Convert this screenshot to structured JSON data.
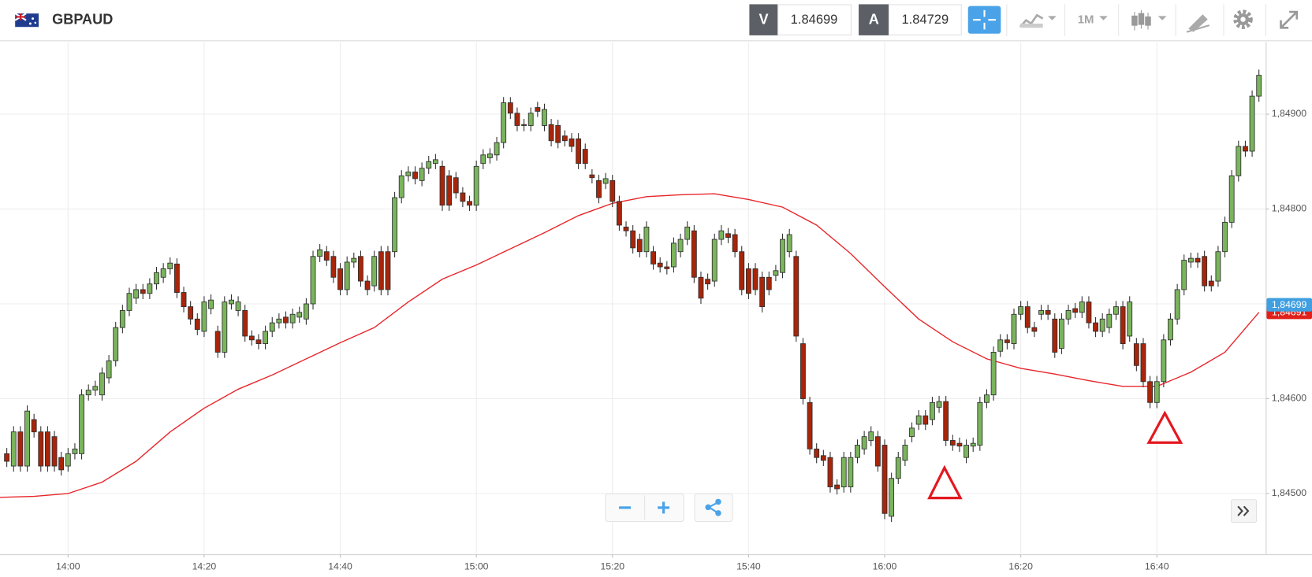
{
  "toolbar": {
    "symbol": "GBPAUD",
    "bid_label": "V",
    "bid": 1.84699,
    "ask_label": "A",
    "ask": 1.84729,
    "timeframe": "1M"
  },
  "chart_data": {
    "type": "candlestick",
    "x": [
      "13:51",
      "13:52",
      "13:53",
      "13:54",
      "13:55",
      "13:56",
      "13:57",
      "13:58",
      "13:59",
      "14:00",
      "14:01",
      "14:02",
      "14:03",
      "14:04",
      "14:05",
      "14:06",
      "14:07",
      "14:08",
      "14:09",
      "14:10",
      "14:11",
      "14:12",
      "14:13",
      "14:14",
      "14:15",
      "14:16",
      "14:17",
      "14:18",
      "14:19",
      "14:20",
      "14:21",
      "14:22",
      "14:23",
      "14:24",
      "14:25",
      "14:26",
      "14:27",
      "14:28",
      "14:29",
      "14:30",
      "14:31",
      "14:32",
      "14:33",
      "14:34",
      "14:35",
      "14:36",
      "14:37",
      "14:38",
      "14:39",
      "14:40",
      "14:41",
      "14:42",
      "14:43",
      "14:44",
      "14:45",
      "14:46",
      "14:47",
      "14:48",
      "14:49",
      "14:50",
      "14:51",
      "14:52",
      "14:53",
      "14:54",
      "14:55",
      "14:56",
      "14:57",
      "14:58",
      "14:59",
      "15:00",
      "15:01",
      "15:02",
      "15:03",
      "15:04",
      "15:05",
      "15:06",
      "15:07",
      "15:08",
      "15:09",
      "15:10",
      "15:11",
      "15:12",
      "15:13",
      "15:14",
      "15:15",
      "15:16",
      "15:17",
      "15:18",
      "15:19",
      "15:20",
      "15:21",
      "15:22",
      "15:23",
      "15:24",
      "15:25",
      "15:26",
      "15:27",
      "15:28",
      "15:29",
      "15:30",
      "15:31",
      "15:32",
      "15:33",
      "15:34",
      "15:35",
      "15:36",
      "15:37",
      "15:38",
      "15:39",
      "15:40",
      "15:41",
      "15:42",
      "15:43",
      "15:44",
      "15:45",
      "15:46",
      "15:47",
      "15:48",
      "15:49",
      "15:50",
      "15:51",
      "15:52",
      "15:53",
      "15:54",
      "15:55",
      "15:56",
      "15:57",
      "15:58",
      "15:59",
      "16:00",
      "16:01",
      "16:02",
      "16:03",
      "16:04",
      "16:05",
      "16:06",
      "16:07",
      "16:08",
      "16:09",
      "16:10",
      "16:11",
      "16:12",
      "16:13",
      "16:14",
      "16:15",
      "16:16",
      "16:17",
      "16:18",
      "16:19",
      "16:20",
      "16:21",
      "16:22",
      "16:23",
      "16:24",
      "16:25",
      "16:26",
      "16:27",
      "16:28",
      "16:29",
      "16:30",
      "16:31",
      "16:32",
      "16:33",
      "16:34",
      "16:35",
      "16:36",
      "16:37",
      "16:38",
      "16:39",
      "16:40",
      "16:41",
      "16:42",
      "16:43",
      "16:44",
      "16:45",
      "16:46",
      "16:47",
      "16:48",
      "16:49",
      "16:50",
      "16:51",
      "16:52",
      "16:53",
      "16:54",
      "16:55"
    ],
    "open": [
      1.84542,
      1.84529,
      1.84565,
      1.84529,
      1.84578,
      1.84565,
      1.84565,
      1.8456,
      1.84538,
      1.84529,
      1.84542,
      1.84542,
      1.84604,
      1.84609,
      1.84604,
      1.84622,
      1.8464,
      1.84675,
      1.84693,
      1.84706,
      1.84715,
      1.84711,
      1.84721,
      1.84728,
      1.84737,
      1.84742,
      1.84712,
      1.84697,
      1.84684,
      1.84671,
      1.84695,
      1.84671,
      1.84649,
      1.847,
      1.84693,
      1.84693,
      1.84666,
      1.84662,
      1.84658,
      1.84671,
      1.8468,
      1.84686,
      1.8468,
      1.84686,
      1.84684,
      1.847,
      1.8475,
      1.84755,
      1.8475,
      1.84737,
      1.84715,
      1.84744,
      1.8475,
      1.84724,
      1.84719,
      1.84755,
      1.84755,
      1.84755,
      1.84812,
      1.84835,
      1.84839,
      1.8483,
      1.84843,
      1.84848,
      1.84845,
      1.84835,
      1.84833,
      1.84817,
      1.84808,
      1.84804,
      1.84848,
      1.84854,
      1.84857,
      1.8487,
      1.84912,
      1.84901,
      1.84889,
      1.84888,
      1.84907,
      1.84888,
      1.84889,
      1.84888,
      1.84877,
      1.84874,
      1.84874,
      1.84863,
      1.84836,
      1.8483,
      1.84827,
      1.8483,
      1.84808,
      1.84781,
      1.84777,
      1.84768,
      1.84755,
      1.84755,
      1.84743,
      1.84739,
      1.84739,
      1.84755,
      1.84768,
      1.84777,
      1.84728,
      1.84726,
      1.84724,
      1.84768,
      1.84774,
      1.84773,
      1.84755,
      1.84737,
      1.84737,
      1.84728,
      1.84728,
      1.8473,
      1.84733,
      1.84755,
      1.8475,
      1.84658,
      1.84596,
      1.84547,
      1.8454,
      1.84538,
      1.84509,
      1.84507,
      1.84507,
      1.84538,
      1.84547,
      1.84556,
      1.8456,
      1.84551,
      1.84476,
      1.84516,
      1.84535,
      1.8456,
      1.84573,
      1.84582,
      1.84578,
      1.84591,
      1.84597,
      1.84556,
      1.84553,
      1.84538,
      1.8455,
      1.84551,
      1.84596,
      1.84604,
      1.8465,
      1.84662,
      1.84658,
      1.84689,
      1.84697,
      1.84675,
      1.84689,
      1.84693,
      1.84684,
      1.84653,
      1.84684,
      1.84695,
      1.84691,
      1.84702,
      1.8468,
      1.84671,
      1.84675,
      1.84689,
      1.84697,
      1.84666,
      1.84658,
      1.84658,
      1.84618,
      1.84596,
      1.84618,
      1.84662,
      1.84684,
      1.84715,
      1.84744,
      1.84748,
      1.8475,
      1.84724,
      1.84724,
      1.84755,
      1.84786,
      1.84835,
      1.84866,
      1.84861,
      1.84919
    ],
    "high": [
      1.84548,
      1.84571,
      1.84571,
      1.84593,
      1.84584,
      1.84571,
      1.84571,
      1.84566,
      1.84544,
      1.84548,
      1.84553,
      1.8461,
      1.84615,
      1.84619,
      1.84633,
      1.84646,
      1.84681,
      1.84699,
      1.84717,
      1.84721,
      1.84721,
      1.84727,
      1.84739,
      1.84743,
      1.84749,
      1.84748,
      1.84718,
      1.84703,
      1.8469,
      1.84708,
      1.8471,
      1.84677,
      1.84708,
      1.8471,
      1.84708,
      1.84699,
      1.84672,
      1.84668,
      1.84677,
      1.84686,
      1.8469,
      1.84692,
      1.84695,
      1.84697,
      1.84706,
      1.84756,
      1.84763,
      1.84761,
      1.84756,
      1.84743,
      1.8475,
      1.84754,
      1.84756,
      1.8473,
      1.84756,
      1.84761,
      1.84761,
      1.84818,
      1.84841,
      1.84845,
      1.84845,
      1.84849,
      1.84856,
      1.84858,
      1.84851,
      1.84841,
      1.84839,
      1.84823,
      1.84814,
      1.84851,
      1.84863,
      1.84864,
      1.84876,
      1.84918,
      1.84918,
      1.84907,
      1.84895,
      1.84907,
      1.84913,
      1.84911,
      1.84895,
      1.84894,
      1.84883,
      1.8488,
      1.8488,
      1.84869,
      1.84842,
      1.84836,
      1.84838,
      1.84836,
      1.84814,
      1.84787,
      1.84783,
      1.84774,
      1.84787,
      1.84761,
      1.84749,
      1.84745,
      1.8477,
      1.84774,
      1.84787,
      1.84783,
      1.84734,
      1.84732,
      1.84774,
      1.84783,
      1.8478,
      1.84779,
      1.84761,
      1.84743,
      1.84743,
      1.84734,
      1.84734,
      1.84741,
      1.84774,
      1.84779,
      1.84756,
      1.84664,
      1.84602,
      1.84553,
      1.84546,
      1.84544,
      1.84515,
      1.84544,
      1.84544,
      1.84557,
      1.84566,
      1.84571,
      1.84566,
      1.84557,
      1.84522,
      1.84544,
      1.84557,
      1.84575,
      1.84588,
      1.84588,
      1.84602,
      1.84603,
      1.84603,
      1.84562,
      1.84559,
      1.84557,
      1.84559,
      1.84602,
      1.8461,
      1.84655,
      1.84668,
      1.84668,
      1.84695,
      1.84703,
      1.84703,
      1.84681,
      1.84699,
      1.84699,
      1.8469,
      1.8469,
      1.84699,
      1.84701,
      1.84708,
      1.84708,
      1.84686,
      1.8469,
      1.84695,
      1.84703,
      1.84703,
      1.84708,
      1.84664,
      1.84664,
      1.84624,
      1.84624,
      1.84668,
      1.8469,
      1.84721,
      1.84752,
      1.84754,
      1.84754,
      1.84756,
      1.8473,
      1.84761,
      1.84792,
      1.84841,
      1.84872,
      1.84872,
      1.84925,
      1.84947
    ],
    "low": [
      1.84528,
      1.84523,
      1.84523,
      1.84523,
      1.84559,
      1.84523,
      1.84523,
      1.84523,
      1.84519,
      1.84523,
      1.84536,
      1.84536,
      1.84598,
      1.84603,
      1.84598,
      1.84616,
      1.84634,
      1.84669,
      1.84687,
      1.847,
      1.84705,
      1.84705,
      1.84715,
      1.84722,
      1.84731,
      1.84706,
      1.84691,
      1.84678,
      1.84667,
      1.84665,
      1.84689,
      1.84643,
      1.84643,
      1.84694,
      1.84687,
      1.8466,
      1.84656,
      1.84652,
      1.84652,
      1.84665,
      1.84674,
      1.84674,
      1.84674,
      1.8468,
      1.84678,
      1.84694,
      1.84744,
      1.8474,
      1.84722,
      1.84709,
      1.84709,
      1.84738,
      1.84718,
      1.84709,
      1.84713,
      1.84709,
      1.84709,
      1.84749,
      1.84806,
      1.84829,
      1.84826,
      1.84824,
      1.84837,
      1.84842,
      1.84798,
      1.84798,
      1.84811,
      1.84802,
      1.84798,
      1.84798,
      1.84842,
      1.84848,
      1.84851,
      1.84864,
      1.84895,
      1.84882,
      1.84882,
      1.84882,
      1.84897,
      1.84882,
      1.84866,
      1.84864,
      1.84866,
      1.8486,
      1.84842,
      1.84842,
      1.84827,
      1.84806,
      1.84821,
      1.84802,
      1.84777,
      1.84771,
      1.84753,
      1.84749,
      1.84749,
      1.84736,
      1.84733,
      1.84731,
      1.84733,
      1.84749,
      1.84762,
      1.84722,
      1.847,
      1.84715,
      1.84718,
      1.84762,
      1.84764,
      1.84749,
      1.84709,
      1.84705,
      1.84709,
      1.84691,
      1.84709,
      1.84724,
      1.84727,
      1.84749,
      1.8466,
      1.84594,
      1.84541,
      1.84532,
      1.84529,
      1.84501,
      1.84499,
      1.84501,
      1.84501,
      1.84532,
      1.84541,
      1.8455,
      1.84523,
      1.84473,
      1.8447,
      1.8451,
      1.84529,
      1.84554,
      1.84567,
      1.84567,
      1.84572,
      1.84585,
      1.8455,
      1.84545,
      1.84544,
      1.84532,
      1.84544,
      1.84545,
      1.8459,
      1.84598,
      1.84644,
      1.84652,
      1.84652,
      1.84683,
      1.84669,
      1.84665,
      1.84683,
      1.84683,
      1.84643,
      1.84647,
      1.84678,
      1.84685,
      1.84685,
      1.84674,
      1.84665,
      1.84665,
      1.84669,
      1.84683,
      1.84652,
      1.8466,
      1.84629,
      1.84612,
      1.8459,
      1.8459,
      1.84612,
      1.84656,
      1.84678,
      1.84709,
      1.84738,
      1.84738,
      1.84713,
      1.84713,
      1.84718,
      1.84749,
      1.8478,
      1.84829,
      1.84855,
      1.84855,
      1.84913
    ],
    "close": [
      1.84534,
      1.84565,
      1.84529,
      1.84587,
      1.84565,
      1.84529,
      1.84529,
      1.84529,
      1.84525,
      1.84542,
      1.84547,
      1.84604,
      1.84609,
      1.84613,
      1.84627,
      1.8464,
      1.84675,
      1.84693,
      1.84711,
      1.84715,
      1.84711,
      1.84721,
      1.84733,
      1.84737,
      1.84743,
      1.84712,
      1.84697,
      1.84684,
      1.84673,
      1.84702,
      1.84704,
      1.84649,
      1.84702,
      1.84704,
      1.84702,
      1.84666,
      1.84662,
      1.84658,
      1.84671,
      1.8468,
      1.84684,
      1.8468,
      1.84689,
      1.84691,
      1.847,
      1.8475,
      1.84757,
      1.84746,
      1.84728,
      1.84715,
      1.84744,
      1.84748,
      1.84724,
      1.84715,
      1.8475,
      1.84715,
      1.84715,
      1.84812,
      1.84835,
      1.84839,
      1.84832,
      1.84843,
      1.8485,
      1.84852,
      1.84804,
      1.84804,
      1.84817,
      1.84808,
      1.84804,
      1.84845,
      1.84857,
      1.84858,
      1.8487,
      1.84912,
      1.84901,
      1.84888,
      1.84888,
      1.84901,
      1.84903,
      1.84905,
      1.84872,
      1.8487,
      1.84872,
      1.84866,
      1.84848,
      1.84848,
      1.84833,
      1.84812,
      1.84832,
      1.84808,
      1.84783,
      1.84777,
      1.84759,
      1.84755,
      1.84781,
      1.84742,
      1.84739,
      1.84737,
      1.84764,
      1.84768,
      1.84781,
      1.84728,
      1.84706,
      1.84721,
      1.84768,
      1.84777,
      1.8477,
      1.84755,
      1.84715,
      1.84711,
      1.84715,
      1.84697,
      1.84715,
      1.84735,
      1.84768,
      1.84773,
      1.84666,
      1.846,
      1.84547,
      1.84538,
      1.84535,
      1.84507,
      1.84505,
      1.84538,
      1.84538,
      1.84551,
      1.8456,
      1.84565,
      1.84529,
      1.84479,
      1.84516,
      1.84538,
      1.84551,
      1.84569,
      1.84582,
      1.84573,
      1.84596,
      1.84597,
      1.84556,
      1.84551,
      1.8455,
      1.84551,
      1.84553,
      1.84596,
      1.84604,
      1.84649,
      1.84662,
      1.84659,
      1.84689,
      1.84697,
      1.84675,
      1.84671,
      1.84693,
      1.84689,
      1.84649,
      1.84684,
      1.84693,
      1.84691,
      1.84702,
      1.8468,
      1.84671,
      1.84684,
      1.84689,
      1.84697,
      1.84658,
      1.84702,
      1.84635,
      1.84618,
      1.84596,
      1.84618,
      1.84662,
      1.84684,
      1.84715,
      1.84746,
      1.84748,
      1.84744,
      1.84719,
      1.84719,
      1.84755,
      1.84786,
      1.84835,
      1.84866,
      1.84861,
      1.84919,
      1.84941
    ],
    "up_color": "#7ab45c",
    "down_color": "#a8250a",
    "wick_color": "#2e2e2e",
    "overlay": {
      "type": "line",
      "color": "#e8262b",
      "x": [
        "13:50",
        "13:55",
        "14:00",
        "14:05",
        "14:10",
        "14:15",
        "14:20",
        "14:25",
        "14:30",
        "14:35",
        "14:40",
        "14:45",
        "14:50",
        "14:55",
        "15:00",
        "15:05",
        "15:10",
        "15:15",
        "15:20",
        "15:25",
        "15:30",
        "15:35",
        "15:40",
        "15:45",
        "15:50",
        "15:55",
        "16:00",
        "16:05",
        "16:10",
        "16:15",
        "16:20",
        "16:25",
        "16:30",
        "16:35",
        "16:40",
        "16:45",
        "16:50",
        "16:55"
      ],
      "values": [
        1.84496,
        1.84497,
        1.845,
        1.84512,
        1.84534,
        1.84565,
        1.8459,
        1.8461,
        1.84625,
        1.84642,
        1.84659,
        1.84675,
        1.84702,
        1.84726,
        1.84741,
        1.84758,
        1.84775,
        1.84793,
        1.84806,
        1.84813,
        1.84815,
        1.84816,
        1.8481,
        1.84802,
        1.84783,
        1.84753,
        1.84718,
        1.84684,
        1.8466,
        1.84642,
        1.84632,
        1.84626,
        1.84619,
        1.84613,
        1.84613,
        1.84628,
        1.84649,
        1.84691
      ]
    },
    "price_tags": [
      {
        "value": 1.84691,
        "label": "1,84691",
        "color": "#e0201b"
      },
      {
        "value": 1.84699,
        "label": "1,84699",
        "color": "#3f9fe0"
      }
    ],
    "xlim": [
      "13:50",
      "16:56"
    ],
    "xticks": [
      "14:00",
      "14:20",
      "14:40",
      "15:00",
      "15:20",
      "15:40",
      "16:00",
      "16:20",
      "16:40"
    ],
    "ylim": [
      1.84436,
      1.84976
    ],
    "yticks": [
      {
        "value": 1.845,
        "label": "1,84500"
      },
      {
        "value": 1.846,
        "label": "1,84600"
      },
      {
        "value": 1.847,
        "label": "1,84700"
      },
      {
        "value": 1.848,
        "label": "1,84800"
      },
      {
        "value": 1.849,
        "label": "1,84900"
      }
    ],
    "grid": true
  }
}
